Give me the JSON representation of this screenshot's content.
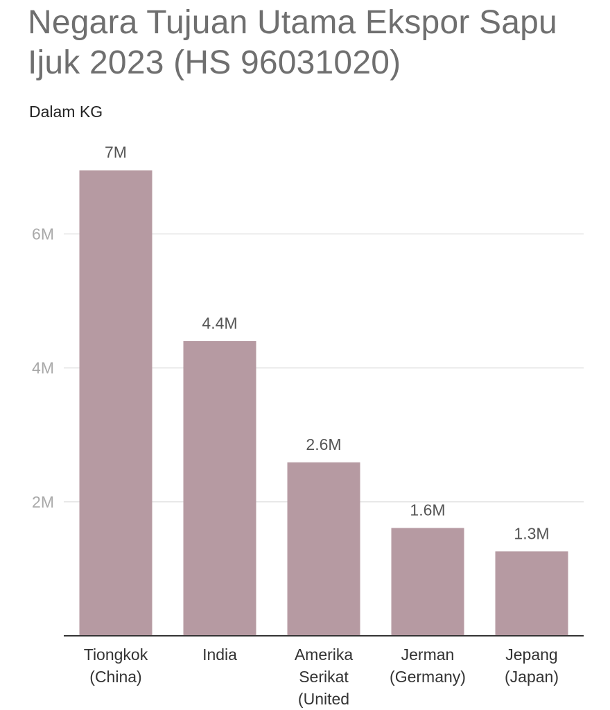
{
  "chart_data": {
    "type": "bar",
    "title": "Negara Tujuan Utama Ekspor Sapu Ijuk 2023 (HS 96031020)",
    "subtitle": "Dalam KG",
    "categories": [
      [
        "Tiongkok",
        "(China)"
      ],
      [
        "India"
      ],
      [
        "Amerika",
        "Serikat",
        "(United"
      ],
      [
        "Jerman",
        "(Germany)"
      ],
      [
        "Jepang",
        "(Japan)"
      ]
    ],
    "values": [
      6950000,
      4400000,
      2590000,
      1610000,
      1260000
    ],
    "value_labels": [
      "7M",
      "4.4M",
      "2.6M",
      "1.6M",
      "1.3M"
    ],
    "yticks": [
      {
        "value": 2000000,
        "label": "2M"
      },
      {
        "value": 4000000,
        "label": "4M"
      },
      {
        "value": 6000000,
        "label": "6M"
      }
    ],
    "ylim": [
      0,
      7500000
    ],
    "grid": true,
    "colors": {
      "bar": "#b69aa2",
      "grid": "#e3e3e3",
      "axis": "#333333"
    }
  }
}
